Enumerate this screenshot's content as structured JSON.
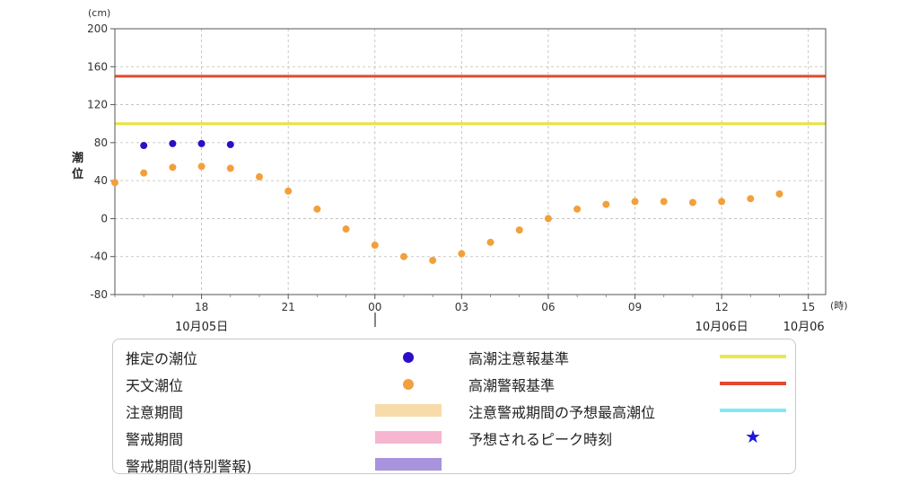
{
  "chart_data": {
    "type": "scatter",
    "y_unit": "(cm)",
    "x_unit": "(時)",
    "ylabel": "潮位",
    "ylim": [
      -80,
      200
    ],
    "yticks": [
      "200",
      "160",
      "120",
      "80",
      "40",
      "0",
      "-40",
      "-80"
    ],
    "xticks": [
      {
        "hour": 18,
        "label": "18"
      },
      {
        "hour": 21,
        "label": "21"
      },
      {
        "hour": 24,
        "label": "00"
      },
      {
        "hour": 27,
        "label": "03"
      },
      {
        "hour": 30,
        "label": "06"
      },
      {
        "hour": 33,
        "label": "09"
      },
      {
        "hour": 36,
        "label": "12"
      },
      {
        "hour": 39,
        "label": "15"
      }
    ],
    "xlim_hours": [
      15,
      39.6
    ],
    "date_labels": [
      {
        "hour": 18,
        "label": "10月05日"
      },
      {
        "hour": 36,
        "label": "10月06日"
      },
      {
        "hour": 39,
        "label": "10月06"
      }
    ],
    "day_boundary_hour": 24,
    "thresholds": [
      {
        "name": "高潮注意報基準",
        "value": 100,
        "color": "#e8e43a"
      },
      {
        "name": "高潮警報基準",
        "value": 150,
        "color": "#e24a2e"
      }
    ],
    "series": [
      {
        "name": "推定の潮位",
        "color": "#2c0fc4",
        "points": [
          [
            16,
            77
          ],
          [
            17,
            79
          ],
          [
            18,
            79
          ],
          [
            19,
            78
          ]
        ]
      },
      {
        "name": "天文潮位",
        "color": "#f2a03c",
        "points": [
          [
            15,
            38
          ],
          [
            16,
            48
          ],
          [
            17,
            54
          ],
          [
            18,
            55
          ],
          [
            19,
            53
          ],
          [
            20,
            44
          ],
          [
            21,
            29
          ],
          [
            22,
            10
          ],
          [
            23,
            -11
          ],
          [
            24,
            -28
          ],
          [
            25,
            -40
          ],
          [
            26,
            -44
          ],
          [
            27,
            -37
          ],
          [
            28,
            -25
          ],
          [
            29,
            -12
          ],
          [
            30,
            0
          ],
          [
            31,
            10
          ],
          [
            32,
            15
          ],
          [
            33,
            18
          ],
          [
            34,
            18
          ],
          [
            35,
            17
          ],
          [
            36,
            18
          ],
          [
            37,
            21
          ],
          [
            38,
            26
          ]
        ]
      }
    ]
  },
  "legend": {
    "col1": [
      {
        "label": "推定の潮位",
        "kind": "dot",
        "color": "#2c0fc4"
      },
      {
        "label": "天文潮位",
        "kind": "dot",
        "color": "#f2a03c"
      },
      {
        "label": "注意期間",
        "kind": "swatch",
        "color": "#f7dcaa"
      },
      {
        "label": "警戒期間",
        "kind": "swatch",
        "color": "#f6b6cf"
      },
      {
        "label": "警戒期間(特別警報)",
        "kind": "swatch",
        "color": "#a893dd"
      }
    ],
    "col2": [
      {
        "label": "高潮注意報基準",
        "kind": "line",
        "color": "#ece74a"
      },
      {
        "label": "高潮警報基準",
        "kind": "line",
        "color": "#e24a2e"
      },
      {
        "label": "注意警戒期間の予想最高潮位",
        "kind": "line",
        "color": "#7fe9f7"
      },
      {
        "label": "予想されるピーク時刻",
        "kind": "star",
        "color": "#1c18d9"
      }
    ],
    "star_glyph": "★"
  }
}
